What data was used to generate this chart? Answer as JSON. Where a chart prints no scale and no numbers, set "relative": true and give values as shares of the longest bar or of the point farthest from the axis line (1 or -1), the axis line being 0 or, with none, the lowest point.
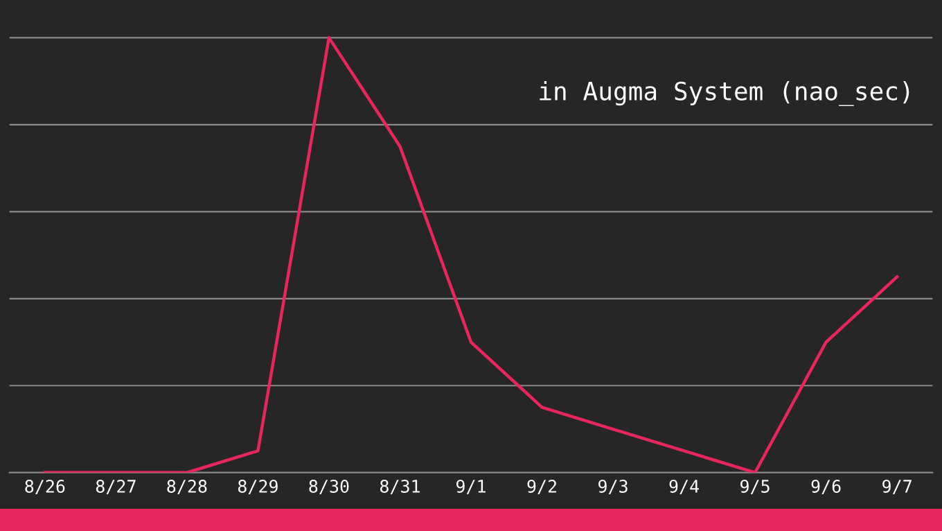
{
  "chart_data": {
    "type": "line",
    "title": "in Augma System (nao_sec)",
    "relative": true,
    "grid": "y",
    "legend": false,
    "marker": "none",
    "line_style": "solid",
    "categories": [
      "8/26",
      "8/27",
      "8/28",
      "8/29",
      "8/30",
      "8/31",
      "9/1",
      "9/2",
      "9/3",
      "9/4",
      "9/5",
      "9/6",
      "9/7"
    ],
    "series": [
      {
        "color": "#e8265e",
        "values": [
          0,
          0,
          0,
          0.05,
          1,
          0.75,
          0.3,
          0.15,
          0.1,
          0.05,
          0,
          0.3,
          0.45
        ]
      }
    ]
  }
}
